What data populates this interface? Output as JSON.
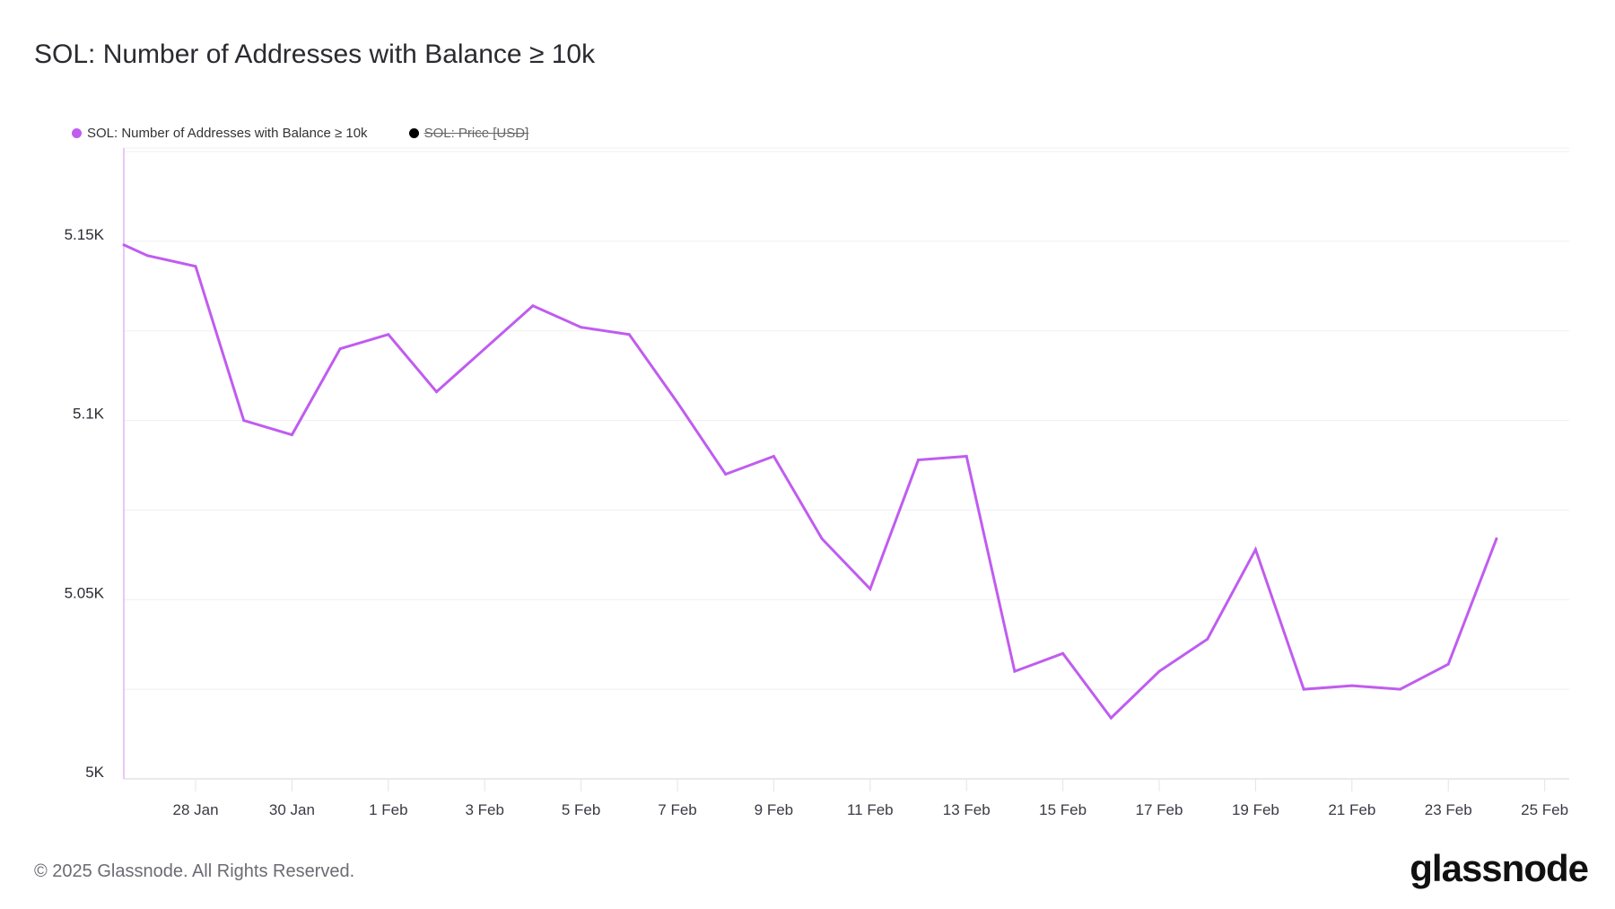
{
  "header": {
    "title": "SOL: Number of Addresses with Balance ≥ 10k"
  },
  "legend": [
    {
      "label": "SOL: Number of Addresses with Balance ≥ 10k",
      "color": "#c05cf0",
      "hidden": false
    },
    {
      "label": "SOL: Price [USD]",
      "color": "#000000",
      "hidden": true
    }
  ],
  "footer": {
    "copyright": "© 2025 Glassnode. All Rights Reserved.",
    "logo": "glassnode"
  },
  "chart_data": {
    "type": "line",
    "title": "SOL: Number of Addresses with Balance ≥ 10k",
    "xlabel": "",
    "ylabel": "",
    "x_unit": "days since 27 Jan 2025",
    "xlim": [
      -0.49,
      29.51
    ],
    "ylim": [
      5000,
      5176
    ],
    "yticks": [
      {
        "value": 5000,
        "label": "5K"
      },
      {
        "value": 5050,
        "label": "5.05K"
      },
      {
        "value": 5100,
        "label": "5.1K"
      },
      {
        "value": 5150,
        "label": "5.15K"
      }
    ],
    "ygrid": [
      5025,
      5050,
      5075,
      5100,
      5125,
      5150,
      5175
    ],
    "xticks": [
      {
        "value": 1,
        "label": "28 Jan"
      },
      {
        "value": 3,
        "label": "30 Jan"
      },
      {
        "value": 5,
        "label": "1 Feb"
      },
      {
        "value": 7,
        "label": "3 Feb"
      },
      {
        "value": 9,
        "label": "5 Feb"
      },
      {
        "value": 11,
        "label": "7 Feb"
      },
      {
        "value": 13,
        "label": "9 Feb"
      },
      {
        "value": 15,
        "label": "11 Feb"
      },
      {
        "value": 17,
        "label": "13 Feb"
      },
      {
        "value": 19,
        "label": "15 Feb"
      },
      {
        "value": 21,
        "label": "17 Feb"
      },
      {
        "value": 23,
        "label": "19 Feb"
      },
      {
        "value": 25,
        "label": "21 Feb"
      },
      {
        "value": 27,
        "label": "23 Feb"
      },
      {
        "value": 29,
        "label": "25 Feb"
      }
    ],
    "series": [
      {
        "name": "SOL: Number of Addresses with Balance ≥ 10k",
        "color": "#c05cf0",
        "x": [
          -0.49,
          0,
          1,
          2,
          3,
          4,
          5,
          6,
          7,
          8,
          9,
          10,
          11,
          12,
          13,
          14,
          15,
          16,
          17,
          18,
          19,
          20,
          21,
          22,
          23,
          24,
          25,
          26,
          27,
          28
        ],
        "values": [
          5149,
          5146,
          5143,
          5100,
          5096,
          5120,
          5124,
          5108,
          5120,
          5132,
          5126,
          5124,
          5105,
          5085,
          5090,
          5067,
          5053,
          5089,
          5090,
          5030,
          5035,
          5017,
          5030,
          5039,
          5064,
          5025,
          5026,
          5025,
          5032,
          5067
        ]
      }
    ]
  }
}
